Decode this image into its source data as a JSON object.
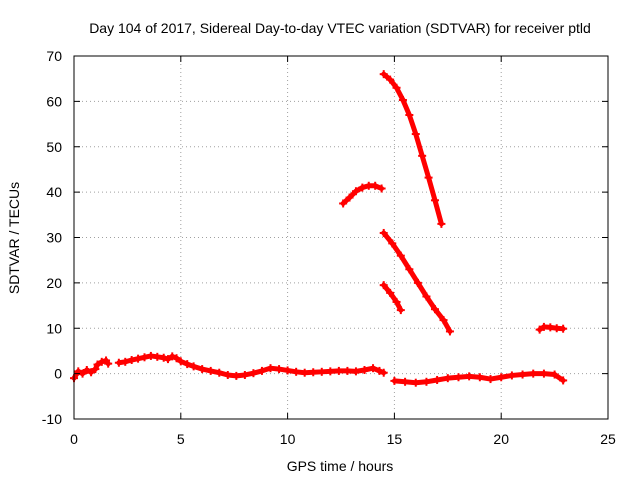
{
  "chart_data": {
    "type": "scatter",
    "title": "Day 104 of 2017, Sidereal Day-to-day VTEC variation (SDTVAR) for receiver ptld",
    "xlabel": "GPS time / hours",
    "ylabel": "SDTVAR / TECUs",
    "xlim": [
      0,
      25
    ],
    "ylim": [
      -10,
      70
    ],
    "xticks": [
      0,
      5,
      10,
      15,
      20,
      25
    ],
    "yticks": [
      -10,
      0,
      10,
      20,
      30,
      40,
      50,
      60,
      70
    ],
    "grid": true,
    "legend": "none",
    "marker": "plus",
    "color": "#ff0000",
    "series": [
      {
        "points": [
          [
            0.0,
            -1.0
          ],
          [
            0.2,
            0.5
          ],
          [
            0.4,
            0.0
          ],
          [
            0.6,
            0.8
          ],
          [
            0.8,
            0.3
          ],
          [
            1.0,
            1.0
          ],
          [
            1.1,
            2.0
          ],
          [
            1.3,
            2.6
          ],
          [
            1.5,
            2.9
          ],
          [
            1.6,
            2.2
          ]
        ]
      },
      {
        "points": [
          [
            2.1,
            2.4
          ],
          [
            2.4,
            2.6
          ],
          [
            2.7,
            3.0
          ],
          [
            3.0,
            3.3
          ],
          [
            3.3,
            3.6
          ],
          [
            3.6,
            3.9
          ],
          [
            3.9,
            3.7
          ],
          [
            4.2,
            3.5
          ],
          [
            4.4,
            3.2
          ],
          [
            4.6,
            3.8
          ],
          [
            4.8,
            3.4
          ],
          [
            5.0,
            2.7
          ],
          [
            5.3,
            2.1
          ],
          [
            5.6,
            1.6
          ],
          [
            6.0,
            1.0
          ],
          [
            6.4,
            0.6
          ],
          [
            6.8,
            0.2
          ],
          [
            7.2,
            -0.3
          ],
          [
            7.6,
            -0.5
          ],
          [
            8.0,
            -0.3
          ],
          [
            8.4,
            0.1
          ],
          [
            8.8,
            0.6
          ],
          [
            9.2,
            1.2
          ],
          [
            9.6,
            1.0
          ],
          [
            10.0,
            0.7
          ],
          [
            10.4,
            0.4
          ],
          [
            10.8,
            0.2
          ],
          [
            11.2,
            0.3
          ],
          [
            11.6,
            0.4
          ],
          [
            12.0,
            0.5
          ],
          [
            12.4,
            0.6
          ],
          [
            12.8,
            0.6
          ],
          [
            13.2,
            0.5
          ],
          [
            13.6,
            0.8
          ],
          [
            14.0,
            1.2
          ],
          [
            14.3,
            0.6
          ],
          [
            14.5,
            0.2
          ]
        ]
      },
      {
        "points": [
          [
            12.6,
            37.5
          ],
          [
            12.9,
            38.8
          ],
          [
            13.2,
            40.2
          ],
          [
            13.5,
            41.0
          ],
          [
            13.8,
            41.4
          ],
          [
            14.1,
            41.4
          ],
          [
            14.4,
            40.8
          ]
        ]
      },
      {
        "points": [
          [
            14.5,
            66.0
          ],
          [
            14.8,
            64.8
          ],
          [
            15.1,
            63.0
          ],
          [
            15.4,
            60.3
          ],
          [
            15.7,
            57.0
          ],
          [
            16.0,
            52.8
          ],
          [
            16.3,
            48.0
          ],
          [
            16.6,
            43.2
          ],
          [
            16.9,
            38.2
          ],
          [
            17.2,
            33.0
          ]
        ]
      },
      {
        "points": [
          [
            14.5,
            31.0
          ],
          [
            14.9,
            28.7
          ],
          [
            15.3,
            26.0
          ],
          [
            15.7,
            23.0
          ],
          [
            16.1,
            20.0
          ],
          [
            16.5,
            17.0
          ],
          [
            16.9,
            14.2
          ],
          [
            17.3,
            11.8
          ],
          [
            17.6,
            9.3
          ]
        ]
      },
      {
        "points": [
          [
            14.5,
            19.5
          ],
          [
            14.8,
            17.8
          ],
          [
            15.1,
            15.8
          ],
          [
            15.3,
            14.0
          ]
        ]
      },
      {
        "points": [
          [
            15.0,
            -1.6
          ],
          [
            15.5,
            -1.8
          ],
          [
            16.0,
            -2.0
          ],
          [
            16.5,
            -1.8
          ],
          [
            17.0,
            -1.4
          ],
          [
            17.5,
            -1.0
          ],
          [
            18.0,
            -0.8
          ],
          [
            18.5,
            -0.6
          ],
          [
            19.0,
            -0.8
          ],
          [
            19.5,
            -1.2
          ],
          [
            20.0,
            -0.8
          ],
          [
            20.5,
            -0.4
          ],
          [
            21.0,
            -0.2
          ],
          [
            21.5,
            0.0
          ],
          [
            22.0,
            0.0
          ],
          [
            22.5,
            -0.2
          ],
          [
            22.9,
            -1.5
          ]
        ]
      },
      {
        "points": [
          [
            21.8,
            9.7
          ],
          [
            22.0,
            10.3
          ],
          [
            22.3,
            10.2
          ],
          [
            22.6,
            10.0
          ],
          [
            22.9,
            9.9
          ]
        ]
      }
    ]
  }
}
